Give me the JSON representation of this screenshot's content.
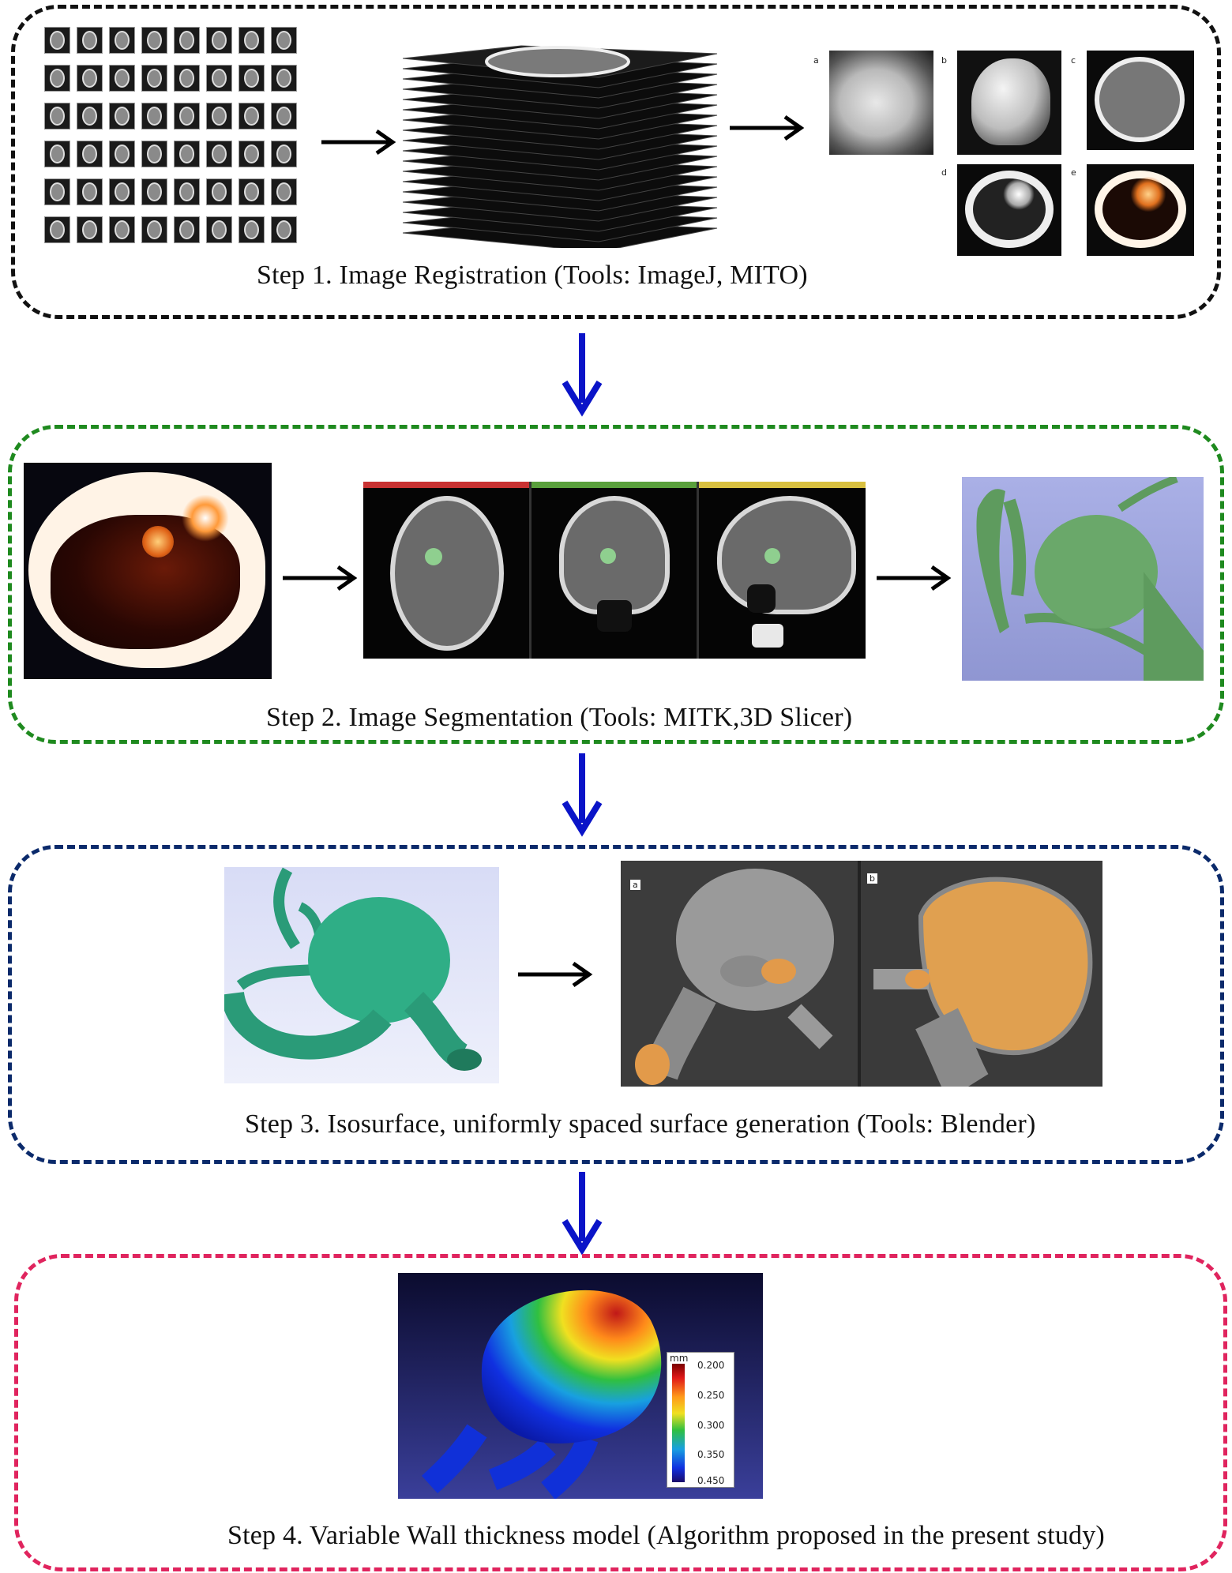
{
  "steps": [
    {
      "id": 1,
      "caption": "Step 1. Image Registration   (Tools: ImageJ, MITO)",
      "border_color": "#111111"
    },
    {
      "id": 2,
      "caption": "Step 2. Image Segmentation  (Tools: MITK,3D Slicer)",
      "border_color": "#1f8a1f"
    },
    {
      "id": 3,
      "caption": "Step 3. Isosurface, uniformly spaced  surface generation  (Tools: Blender)",
      "border_color": "#0b2a6b"
    },
    {
      "id": 4,
      "caption": "Step 4.  Variable Wall thickness model (Algorithm proposed in the present study)",
      "border_color": "#e0245e"
    }
  ],
  "step1": {
    "render_labels": [
      "a",
      "b",
      "c",
      "d",
      "e"
    ]
  },
  "step3": {
    "mesh_labels": [
      "a",
      "b"
    ]
  },
  "colorbar": {
    "unit": "mm",
    "ticks": [
      "0.200",
      "0.250",
      "0.300",
      "0.350",
      "0.450"
    ]
  },
  "colors": {
    "flow_arrow": "#0a14c8",
    "inline_arrow": "#000000"
  }
}
